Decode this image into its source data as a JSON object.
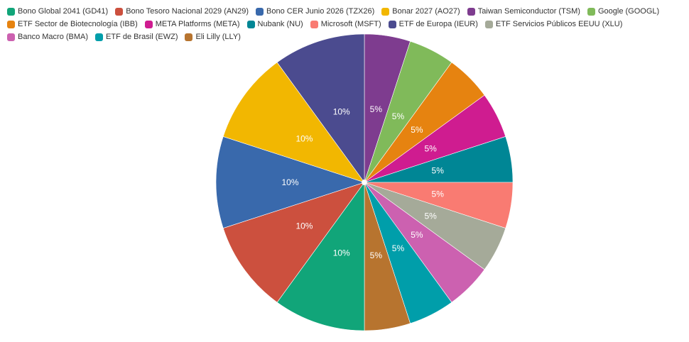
{
  "chart_data": {
    "type": "pie",
    "title": "",
    "legend_position": "top",
    "start_angle": "12 o'clock",
    "direction": "clockwise",
    "slices": [
      {
        "name": "Taiwan Semiconductor (TSM)",
        "value": 5,
        "label": "5%",
        "color": "#7E3C8F"
      },
      {
        "name": "Google (GOOGL)",
        "value": 5,
        "label": "5%",
        "color": "#80BA5A"
      },
      {
        "name": "ETF Sector de Biotecnología (IBB)",
        "value": 5,
        "label": "5%",
        "color": "#E68310"
      },
      {
        "name": "META Platforms (META)",
        "value": 5,
        "label": "5%",
        "color": "#CF1C90"
      },
      {
        "name": "Nubank (NU)",
        "value": 5,
        "label": "5%",
        "color": "#008695"
      },
      {
        "name": "Microsoft (MSFT)",
        "value": 5,
        "label": "5%",
        "color": "#F97B72"
      },
      {
        "name": "ETF Servicios Públicos EEUU (XLU)",
        "value": 5,
        "label": "5%",
        "color": "#A5AA99"
      },
      {
        "name": "Banco Macro (BMA)",
        "value": 5,
        "label": "5%",
        "color": "#CC61B0"
      },
      {
        "name": "ETF de Brasil (EWZ)",
        "value": 5,
        "label": "5%",
        "color": "#009EAA"
      },
      {
        "name": "Eli Lilly (LLY)",
        "value": 5,
        "label": "5%",
        "color": "#B7742F"
      },
      {
        "name": "Bono Global 2041 (GD41)",
        "value": 10,
        "label": "10%",
        "color": "#11A579"
      },
      {
        "name": "Bono Tesoro Nacional 2029 (AN29)",
        "value": 10,
        "label": "10%",
        "color": "#CC503E"
      },
      {
        "name": "Bono CER Junio 2026 (TZX26)",
        "value": 10,
        "label": "10%",
        "color": "#3969AC"
      },
      {
        "name": "Bonar 2027 (AO27)",
        "value": 10,
        "label": "10%",
        "color": "#F2B701"
      },
      {
        "name": "ETF de Europa (IEUR)",
        "value": 10,
        "label": "10%",
        "color": "#4B4B8F"
      }
    ],
    "legend_order": [
      "Bono Global 2041 (GD41)",
      "Bono Tesoro Nacional 2029 (AN29)",
      "Bono CER Junio 2026 (TZX26)",
      "Bonar 2027 (AO27)",
      "Taiwan Semiconductor (TSM)",
      "Google (GOOGL)",
      "ETF Sector de Biotecnología (IBB)",
      "META Platforms (META)",
      "Nubank (NU)",
      "Microsoft (MSFT)",
      "ETF de Europa (IEUR)",
      "ETF Servicios Públicos EEUU (XLU)",
      "Banco Macro (BMA)",
      "ETF de Brasil (EWZ)",
      "Eli Lilly (LLY)"
    ]
  }
}
